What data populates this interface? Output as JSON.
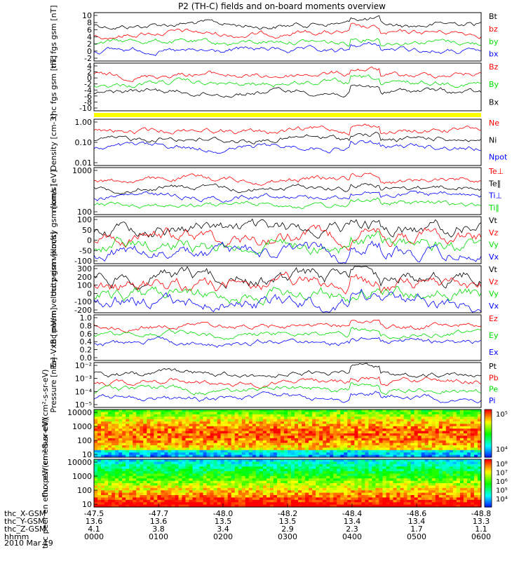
{
  "title": "P2 (TH-C) fields and on-board moments overview",
  "date_label": "2010 Mar 19",
  "colors": {
    "black": "#000000",
    "red": "#ff0000",
    "green": "#00dd00",
    "blue": "#0000ff",
    "yellow": "#ffff00"
  },
  "chart_data": [
    {
      "type": "line",
      "ylabel": "thc fgs gsm [nT]",
      "yticks": [
        "10",
        "8",
        "6",
        "4",
        "2",
        "0",
        "-2"
      ],
      "ylim": [
        -3,
        10
      ],
      "legend": [
        {
          "name": "Bt",
          "color": "black"
        },
        {
          "name": "bz",
          "color": "red"
        },
        {
          "name": "by",
          "color": "green"
        },
        {
          "name": "bx",
          "color": "blue"
        }
      ]
    },
    {
      "type": "line",
      "ylabel": "thc fgs gsm [nT]",
      "yticks": [
        "4",
        "2",
        "0",
        "-2",
        "-4",
        "-6",
        "-8",
        "-10"
      ],
      "ylim": [
        -10,
        4
      ],
      "legend": [
        {
          "name": "Bz",
          "color": "red"
        },
        {
          "name": "By",
          "color": "green"
        },
        {
          "name": "Bx",
          "color": "black"
        }
      ]
    },
    {
      "type": "line",
      "ylabel": "Density [cm-3]",
      "yticks": [
        "1.00",
        "0.10",
        "0.01"
      ],
      "yscale": "log",
      "ylim": [
        0.01,
        1.5
      ],
      "legend": [
        {
          "name": "Ne",
          "color": "red"
        },
        {
          "name": "Ni",
          "color": "black"
        },
        {
          "name": "Npot",
          "color": "blue"
        }
      ]
    },
    {
      "type": "line",
      "ylabel": "moms [eV]",
      "yticks": [
        "1000",
        "100"
      ],
      "yscale": "log",
      "ylim": [
        40,
        3000
      ],
      "legend": [
        {
          "name": "Te⊥",
          "color": "red"
        },
        {
          "name": "Te∥",
          "color": "black"
        },
        {
          "name": "Ti⊥",
          "color": "blue"
        },
        {
          "name": "Ti∥",
          "color": "green"
        }
      ]
    },
    {
      "type": "line",
      "ylabel": "thc peim velocity gsm [km/s]",
      "yticks": [
        "100",
        "50",
        "0",
        "-50",
        "-100"
      ],
      "ylim": [
        -120,
        120
      ],
      "legend": [
        {
          "name": "Vt",
          "color": "black"
        },
        {
          "name": "Vz",
          "color": "red"
        },
        {
          "name": "Vy",
          "color": "green"
        },
        {
          "name": "Vx",
          "color": "blue"
        }
      ]
    },
    {
      "type": "line",
      "ylabel": "thc peem velocity gsm [km/s]",
      "yticks": [
        "300",
        "200",
        "100",
        "0",
        "-100",
        "-200"
      ],
      "ylim": [
        -230,
        310
      ],
      "legend": [
        {
          "name": "Vt",
          "color": "black"
        },
        {
          "name": "Vz",
          "color": "red"
        },
        {
          "name": "Vy",
          "color": "green"
        },
        {
          "name": "Vx",
          "color": "blue"
        }
      ]
    },
    {
      "type": "line",
      "ylabel": "E=-VxB [mV/m]",
      "yticks": [
        "1.0",
        "0.8",
        "0.6",
        "0.4",
        "0.2",
        "0.0"
      ],
      "ylim": [
        0,
        1
      ],
      "legend": [
        {
          "name": "Ez",
          "color": "red"
        },
        {
          "name": "Ey",
          "color": "green"
        },
        {
          "name": "Ex",
          "color": "blue"
        }
      ]
    },
    {
      "type": "line",
      "ylabel": "Pressure [nPa]",
      "yticks": [
        "10⁻²",
        "10⁻³",
        "10⁻⁴",
        "10⁻⁵"
      ],
      "yscale": "log",
      "legend": [
        {
          "name": "Pt",
          "color": "black"
        },
        {
          "name": "Pb",
          "color": "red"
        },
        {
          "name": "Pe",
          "color": "green"
        },
        {
          "name": "Pi",
          "color": "blue"
        }
      ]
    },
    {
      "type": "heatmap",
      "ylabel": "thc peir en eflux eV/(cm²-s-sr-eV)",
      "yticks": [
        "10000",
        "1000",
        "100",
        "10"
      ],
      "yscale": "log",
      "colorbar_ticks": [
        "10⁵",
        "10⁴"
      ]
    },
    {
      "type": "heatmap",
      "ylabel": "thc peer en eflux eV/(cm²-s-sr-eV)",
      "yticks": [
        "10000",
        "1000",
        "100",
        "10"
      ],
      "yscale": "log",
      "colorbar_ticks": [
        "10⁸",
        "10⁷",
        "10⁶",
        "10⁵",
        "10⁴"
      ]
    }
  ],
  "x_axis": {
    "rows": [
      {
        "label": "thc_X-GSM",
        "values": [
          "-47.5",
          "-47.7",
          "-48.0",
          "-48.2",
          "-48.4",
          "-48.6",
          "-48.8"
        ]
      },
      {
        "label": "thc_Y-GSM",
        "values": [
          "13.6",
          "13.6",
          "13.5",
          "13.5",
          "13.4",
          "13.4",
          "13.3"
        ]
      },
      {
        "label": "thc_Z-GSM",
        "values": [
          "4.1",
          "3.8",
          "3.4",
          "2.9",
          "2.3",
          "1.7",
          "1.1"
        ]
      },
      {
        "label": "hhmm",
        "values": [
          "0000",
          "0100",
          "0200",
          "0300",
          "0400",
          "0500",
          "0600"
        ]
      }
    ]
  }
}
